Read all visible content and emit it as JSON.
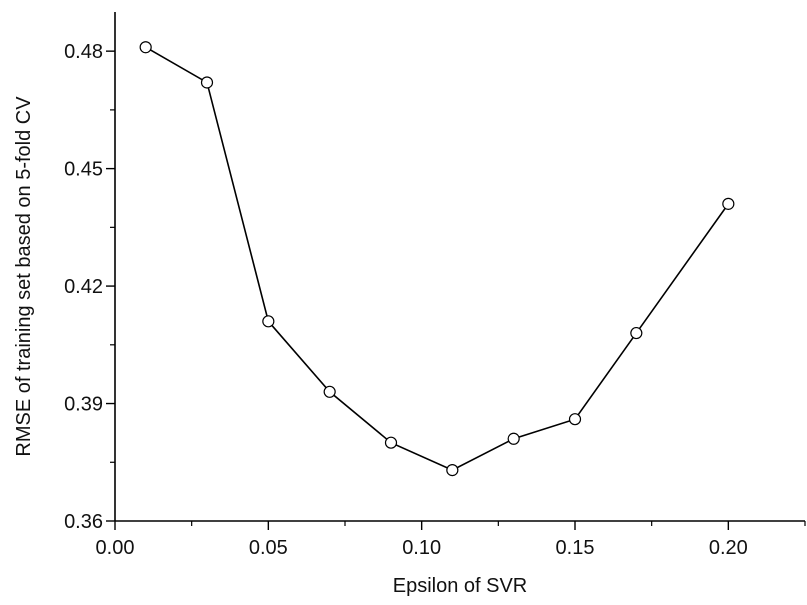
{
  "chart_data": {
    "type": "line",
    "title": "",
    "xlabel": "Epsilon of SVR",
    "ylabel": "RMSE of training set based on 5-fold CV",
    "xlim": [
      0.0,
      0.225
    ],
    "ylim": [
      0.36,
      0.49
    ],
    "xticks": [
      "0.00",
      "0.05",
      "0.10",
      "0.15",
      "0.20"
    ],
    "yticks": [
      "0.36",
      "0.39",
      "0.42",
      "0.45",
      "0.48"
    ],
    "grid": false,
    "legend": "none",
    "series": [
      {
        "x": [
          0.01,
          0.03,
          0.05,
          0.07,
          0.09,
          0.11,
          0.13,
          0.15,
          0.17,
          0.2
        ],
        "y": [
          0.481,
          0.472,
          0.411,
          0.393,
          0.38,
          0.373,
          0.381,
          0.386,
          0.408,
          0.441
        ],
        "color": "#000000",
        "marker": "open-circle"
      }
    ]
  }
}
